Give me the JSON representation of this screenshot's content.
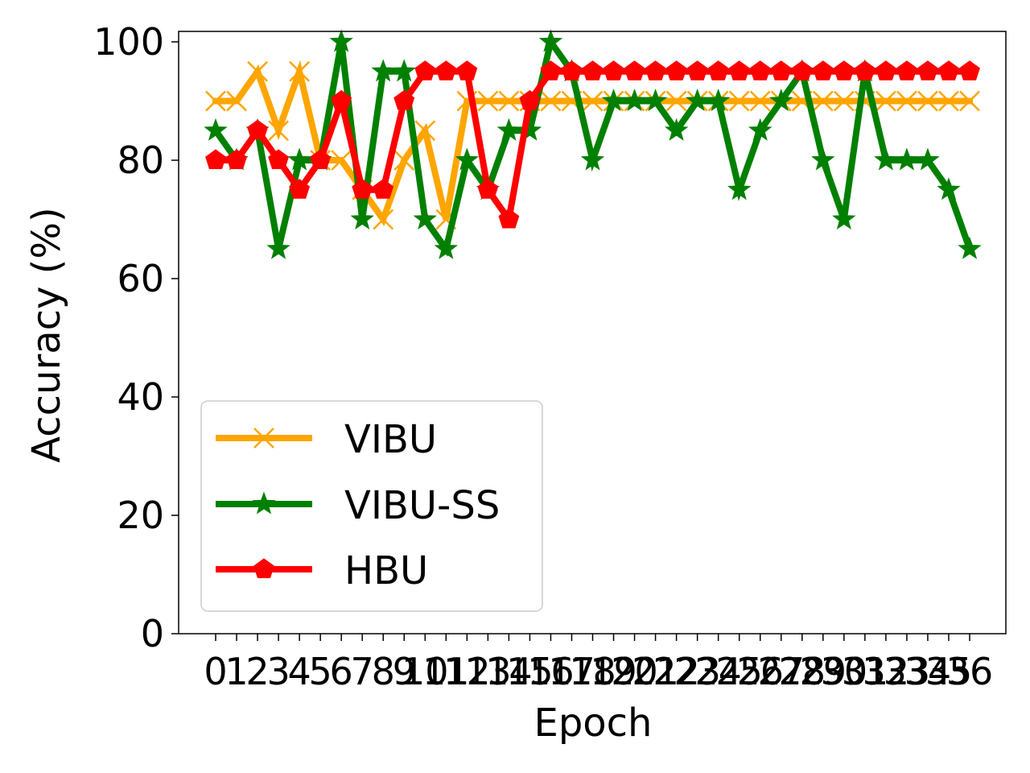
{
  "chart_data": {
    "type": "line",
    "xlabel": "Epoch",
    "ylabel": "Accuracy (%)",
    "ylim": [
      0,
      100
    ],
    "yticks": [
      0,
      20,
      40,
      60,
      80,
      100
    ],
    "x": [
      0,
      1,
      2,
      3,
      4,
      5,
      6,
      7,
      8,
      9,
      10,
      11,
      12,
      13,
      14,
      15,
      16,
      17,
      18,
      19,
      20,
      21,
      22,
      23,
      24,
      25,
      26,
      27,
      28,
      29,
      30,
      31,
      32,
      33,
      34,
      35,
      36
    ],
    "xtick_labels": [
      "0",
      "1",
      "2",
      "3",
      "4",
      "5",
      "6",
      "7",
      "8",
      "9",
      "10",
      "11",
      "12",
      "13",
      "14",
      "15",
      "16",
      "17",
      "18",
      "19",
      "20",
      "21",
      "22",
      "23",
      "24",
      "25",
      "26",
      "27",
      "28",
      "29",
      "30",
      "31",
      "32",
      "33",
      "34",
      "35",
      "36"
    ],
    "grid": false,
    "legend_position": "lower-left",
    "series": [
      {
        "name": "VIBU",
        "color": "#FFA500",
        "marker": "x",
        "values": [
          90,
          90,
          95,
          85,
          95,
          80,
          80,
          75,
          70,
          80,
          85,
          70,
          90,
          90,
          90,
          90,
          90,
          90,
          90,
          90,
          90,
          90,
          90,
          90,
          90,
          90,
          90,
          90,
          90,
          90,
          90,
          90,
          90,
          90,
          90,
          90,
          90
        ]
      },
      {
        "name": "VIBU-SS",
        "color": "#008000",
        "marker": "star",
        "values": [
          85,
          80,
          85,
          65,
          80,
          80,
          100,
          70,
          95,
          95,
          70,
          65,
          80,
          75,
          85,
          85,
          100,
          95,
          80,
          90,
          90,
          90,
          85,
          90,
          90,
          75,
          85,
          90,
          95,
          80,
          70,
          95,
          80,
          80,
          80,
          75,
          65
        ]
      },
      {
        "name": "HBU",
        "color": "#FF0000",
        "marker": "pentagon",
        "values": [
          80,
          80,
          85,
          80,
          75,
          80,
          90,
          75,
          75,
          90,
          95,
          95,
          95,
          75,
          70,
          90,
          95,
          95,
          95,
          95,
          95,
          95,
          95,
          95,
          95,
          95,
          95,
          95,
          95,
          95,
          95,
          95,
          95,
          95,
          95,
          95,
          95
        ]
      }
    ]
  }
}
